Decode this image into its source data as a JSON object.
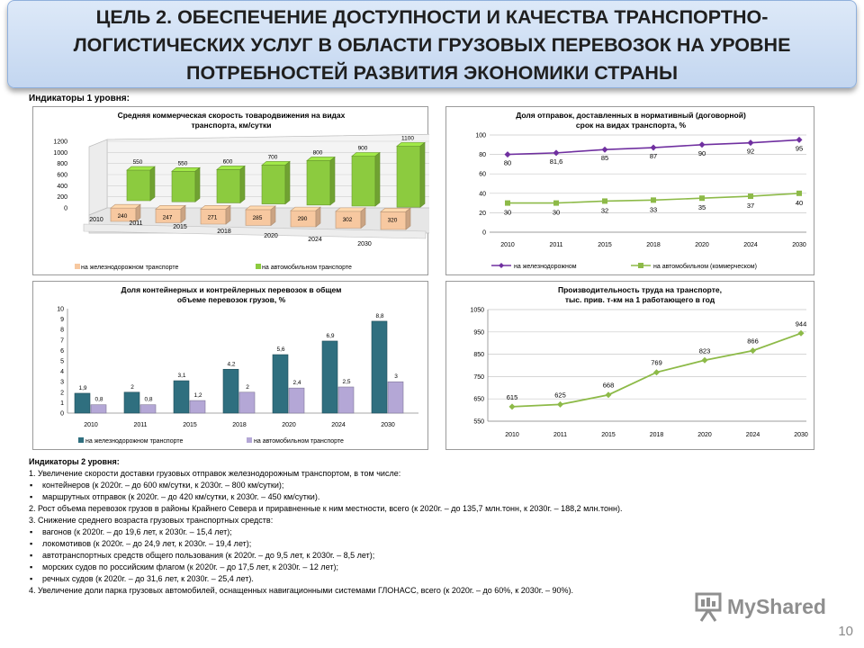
{
  "header": {
    "title_lines": [
      "ЦЕЛЬ 2. ОБЕСПЕЧЕНИЕ ДОСТУПНОСТИ И КАЧЕСТВА ТРАНСПОРТНО-",
      "ЛОГИСТИЧЕСКИХ УСЛУГ В ОБЛАСТИ ГРУЗОВЫХ ПЕРЕВОЗОК НА УРОВНЕ",
      "ПОТРЕБНОСТЕЙ РАЗВИТИЯ ЭКОНОМИКИ СТРАНЫ"
    ]
  },
  "indicators1_label": "Индикаторы 1 уровня:",
  "chart_data": [
    {
      "type": "bar",
      "title": [
        "Средняя коммерческая скорость товародвижения на видах",
        "транспорта, км/сутки"
      ],
      "categories": [
        "2010",
        "2011",
        "2015",
        "2018",
        "2020",
        "2024",
        "2030"
      ],
      "series": [
        {
          "name": "на железнодорожном транспорте",
          "values": [
            240,
            247,
            271,
            285,
            290,
            302,
            320
          ],
          "color": "#f7c8a0"
        },
        {
          "name": "на автомобильном транспорте",
          "values": [
            550,
            550,
            600,
            700,
            800,
            900,
            1100
          ],
          "color": "#8ccb3f"
        }
      ],
      "ylim": [
        0,
        1200
      ],
      "yticks": [
        0,
        200,
        400,
        600,
        800,
        1000,
        1200
      ],
      "legend_position": "bottom"
    },
    {
      "type": "line",
      "title": [
        "Доля отправок, доставленных в нормативный (договорной)",
        "срок на видах транспорта, %"
      ],
      "categories": [
        "2010",
        "2011",
        "2015",
        "2018",
        "2020",
        "2024",
        "2030"
      ],
      "series": [
        {
          "name": "на железнодорожном",
          "values": [
            80,
            81.6,
            85,
            87,
            90,
            92,
            95
          ],
          "labels": [
            "80",
            "81,6",
            "85",
            "87",
            "90",
            "92",
            "95"
          ],
          "color": "#7030a0"
        },
        {
          "name": "на автомобильном (коммерческом)",
          "values": [
            30,
            30,
            32,
            33,
            35,
            37,
            40
          ],
          "labels": [
            "30",
            "30",
            "32",
            "33",
            "35",
            "37",
            "40"
          ],
          "color": "#8dba48"
        }
      ],
      "ylim": [
        0,
        100
      ],
      "yticks": [
        0,
        20,
        40,
        60,
        80,
        100
      ],
      "legend_position": "bottom"
    },
    {
      "type": "bar",
      "title": [
        "Доля контейнерных и контрейлерных перевозок в общем",
        "объеме перевозок грузов, %"
      ],
      "categories": [
        "2010",
        "2011",
        "2015",
        "2018",
        "2020",
        "2024",
        "2030"
      ],
      "series": [
        {
          "name": "на железнодорожном транспорте",
          "values": [
            1.9,
            2,
            3.1,
            4.2,
            5.6,
            6.9,
            8.8
          ],
          "labels": [
            "1,9",
            "2",
            "3,1",
            "4,2",
            "5,6",
            "6,9",
            "8,8"
          ],
          "color": "#2f6f7f"
        },
        {
          "name": "на автомобильном транспорте",
          "values": [
            0.8,
            0.8,
            1.2,
            2,
            2.4,
            2.5,
            3
          ],
          "labels": [
            "0,8",
            "0,8",
            "1,2",
            "2",
            "2,4",
            "2,5",
            "3"
          ],
          "color": "#b4a7d6"
        }
      ],
      "ylim": [
        0,
        10
      ],
      "yticks": [
        0,
        1,
        2,
        3,
        4,
        5,
        6,
        7,
        8,
        9,
        10
      ],
      "legend_position": "bottom"
    },
    {
      "type": "line",
      "title": [
        "Производительность труда на транспорте,",
        "тыс. прив. т-км на 1 работающего в год"
      ],
      "categories": [
        "2010",
        "2011",
        "2015",
        "2018",
        "2020",
        "2024",
        "2030"
      ],
      "series": [
        {
          "values": [
            615,
            625,
            668,
            769,
            823,
            866,
            944
          ],
          "labels": [
            "615",
            "625",
            "668",
            "769",
            "823",
            "866",
            "944"
          ],
          "color": "#8dba48"
        }
      ],
      "ylim": [
        550,
        1050
      ],
      "yticks": [
        550,
        650,
        750,
        850,
        950,
        1050
      ],
      "legend_position": "none"
    }
  ],
  "indicators2": {
    "label": "Индикаторы 2 уровня:",
    "items": [
      {
        "text": "1. Увеличение скорости доставки грузовых отправок железнодорожным транспортом, в том числе:",
        "sub": false
      },
      {
        "text": "контейнеров (к 2020г. – до 600 км/сутки, к 2030г. – 800 км/сутки);",
        "sub": true
      },
      {
        "text": "маршрутных отправок (к 2020г. – до 420 км/сутки, к 2030г. – 450 км/сутки).",
        "sub": true
      },
      {
        "text": "2. Рост объема перевозок грузов в районы Крайнего Севера и приравненные к ним местности, всего (к 2020г. – до 135,7 млн.тонн, к 2030г. – 188,2 млн.тонн).",
        "sub": false
      },
      {
        "text": "3. Снижение среднего возраста грузовых транспортных средств:",
        "sub": false
      },
      {
        "text": "вагонов (к 2020г. – до 19,6 лет, к 2030г. – 15,4 лет);",
        "sub": true
      },
      {
        "text": "локомотивов (к 2020г. – до 24,9 лет, к 2030г. – 19,4 лет);",
        "sub": true
      },
      {
        "text": "автотранспортных средств общего пользования (к 2020г. – до 9,5 лет, к 2030г. – 8,5 лет);",
        "sub": true
      },
      {
        "text": "морских судов по российским флагом (к 2020г. – до 17,5 лет, к 2030г. – 12 лет);",
        "sub": true
      },
      {
        "text": "речных судов (к 2020г. – до 31,6 лет, к 2030г. – 25,4 лет).",
        "sub": true
      },
      {
        "text": "4. Увеличение доли парка грузовых автомобилей, оснащенных навигационными системами ГЛОНАСС, всего (к 2020г. – до 60%, к 2030г. – 90%).",
        "sub": false
      }
    ]
  },
  "watermark": {
    "text": "MyShared"
  },
  "page_number": "10"
}
